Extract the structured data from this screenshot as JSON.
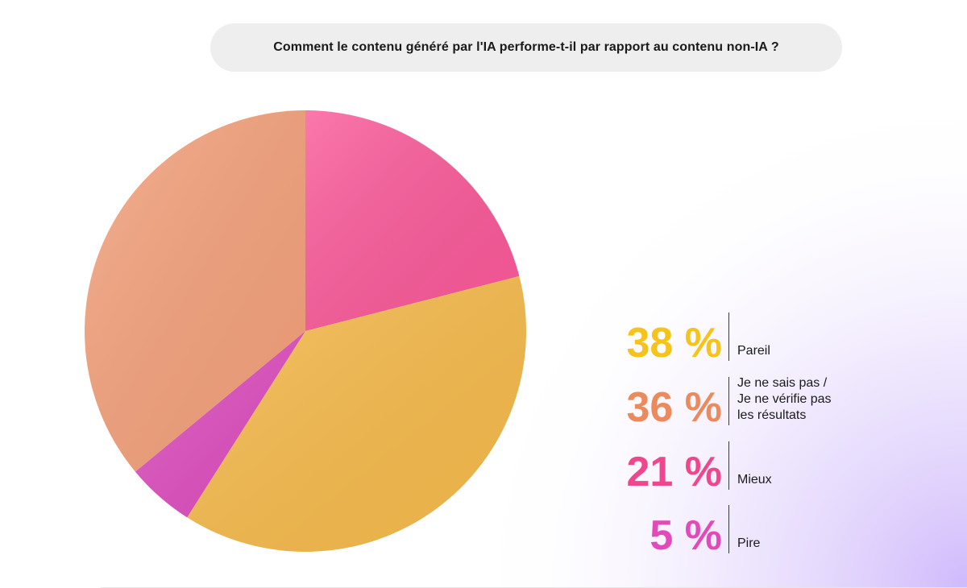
{
  "title": "Comment le contenu généré par l'IA performe-t-il par rapport au contenu non-IA ?",
  "chart_data": {
    "type": "pie",
    "title": "Comment le contenu généré par l'IA performe-t-il par rapport au contenu non-IA ?",
    "slices": [
      {
        "label": "Mieux",
        "value": 21,
        "display": "21 %",
        "color": "#fb5a9a",
        "pct_color": "#f0468d"
      },
      {
        "label": "Pareil",
        "value": 38,
        "display": "38 %",
        "color": "#f7bb4c",
        "pct_color": "#f6c31a"
      },
      {
        "label": "Pire",
        "value": 5,
        "display": "5 %",
        "color": "#df4fc0",
        "pct_color": "#e24aba"
      },
      {
        "label": "Je ne sais pas /\nJe ne vérifie pas\nles résultats",
        "value": 36,
        "display": "36 %",
        "color": "#f5a27c",
        "pct_color": "#ec8a5e"
      }
    ],
    "start_angle": 0,
    "direction": "clockwise"
  },
  "legend": [
    {
      "pct": "38 %",
      "label": "Pareil",
      "color": "#f6c31a"
    },
    {
      "pct": "36 %",
      "label": "Je ne sais pas /\nJe ne vérifie pas\nles résultats",
      "color": "#ec8a5e"
    },
    {
      "pct": "21 %",
      "label": "Mieux",
      "color": "#f0468d"
    },
    {
      "pct": "5 %",
      "label": "Pire",
      "color": "#e24aba"
    }
  ]
}
